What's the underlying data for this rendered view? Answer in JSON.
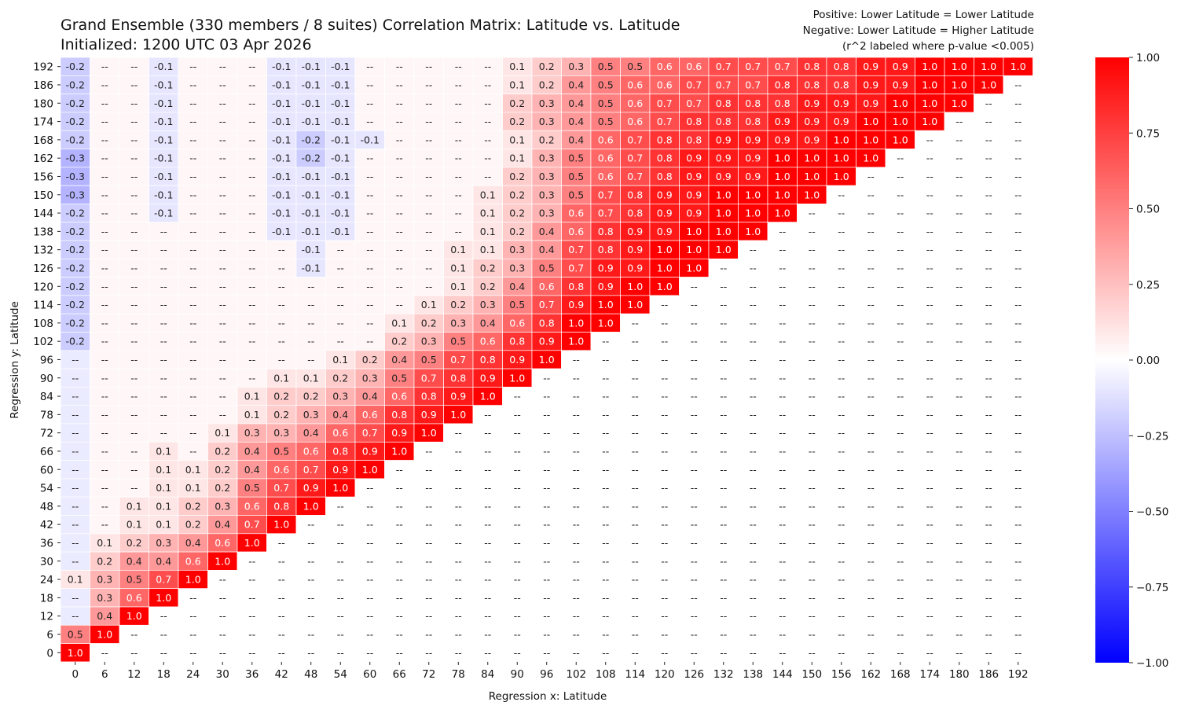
{
  "chart_data": {
    "type": "heatmap",
    "title_line1": "Grand Ensemble (330 members / 8 suites) Correlation Matrix: Latitude vs. Latitude",
    "title_line2": "Initialized: 1200 UTC 03 Apr 2026",
    "note_line1": "Positive: Lower Latitude = Lower Latitude",
    "note_line2": "Negative: Lower Latitude = Higher Latitude",
    "note_line3": "(r^2 labeled where p-value <0.005)",
    "xlabel": "Regression x: Latitude",
    "ylabel": "Regression y: Latitude",
    "x_ticks": [
      "0",
      "6",
      "12",
      "18",
      "24",
      "30",
      "36",
      "42",
      "48",
      "54",
      "60",
      "66",
      "72",
      "78",
      "84",
      "90",
      "96",
      "102",
      "108",
      "114",
      "120",
      "126",
      "132",
      "138",
      "144",
      "150",
      "156",
      "162",
      "168",
      "174",
      "180",
      "186",
      "192"
    ],
    "y_ticks_top_to_bottom": [
      "192",
      "186",
      "180",
      "174",
      "168",
      "162",
      "156",
      "150",
      "144",
      "138",
      "132",
      "126",
      "120",
      "114",
      "108",
      "102",
      "96",
      "90",
      "84",
      "78",
      "72",
      "66",
      "60",
      "54",
      "48",
      "42",
      "36",
      "30",
      "24",
      "18",
      "12",
      "6",
      "0"
    ],
    "empty_label": "--",
    "colorbar": {
      "range": [
        -1.0,
        1.0
      ],
      "tick_values": [
        1.0,
        0.75,
        0.5,
        0.25,
        0.0,
        -0.25,
        -0.5,
        -0.75,
        -1.0
      ],
      "tick_labels": [
        "1.00",
        "0.75",
        "0.50",
        "0.25",
        "0.00",
        "−0.25",
        "−0.50",
        "−0.75",
        "−1.00"
      ],
      "low_color": "#0000ff",
      "mid_color": "#ffffff",
      "high_color": "#ff0000"
    },
    "labels": [
      [
        "-0.2",
        "--",
        "--",
        "-0.1",
        "--",
        "--",
        "--",
        "-0.1",
        "-0.1",
        "-0.1",
        "--",
        "--",
        "--",
        "--",
        "--",
        "0.1",
        "0.2",
        "0.3",
        "0.5",
        "0.5",
        "0.6",
        "0.6",
        "0.7",
        "0.7",
        "0.7",
        "0.8",
        "0.8",
        "0.9",
        "0.9",
        "1.0",
        "1.0",
        "1.0",
        "1.0"
      ],
      [
        "-0.2",
        "--",
        "--",
        "-0.1",
        "--",
        "--",
        "--",
        "-0.1",
        "-0.1",
        "-0.1",
        "--",
        "--",
        "--",
        "--",
        "--",
        "0.1",
        "0.2",
        "0.4",
        "0.5",
        "0.6",
        "0.6",
        "0.7",
        "0.7",
        "0.7",
        "0.8",
        "0.8",
        "0.8",
        "0.9",
        "0.9",
        "1.0",
        "1.0",
        "1.0",
        "--"
      ],
      [
        "-0.2",
        "--",
        "--",
        "-0.1",
        "--",
        "--",
        "--",
        "-0.1",
        "-0.1",
        "-0.1",
        "--",
        "--",
        "--",
        "--",
        "--",
        "0.2",
        "0.3",
        "0.4",
        "0.5",
        "0.6",
        "0.7",
        "0.7",
        "0.8",
        "0.8",
        "0.8",
        "0.9",
        "0.9",
        "0.9",
        "1.0",
        "1.0",
        "1.0",
        "--",
        "--"
      ],
      [
        "-0.2",
        "--",
        "--",
        "-0.1",
        "--",
        "--",
        "--",
        "-0.1",
        "-0.1",
        "-0.1",
        "--",
        "--",
        "--",
        "--",
        "--",
        "0.2",
        "0.3",
        "0.4",
        "0.5",
        "0.6",
        "0.7",
        "0.8",
        "0.8",
        "0.8",
        "0.9",
        "0.9",
        "0.9",
        "1.0",
        "1.0",
        "1.0",
        "--",
        "--",
        "--"
      ],
      [
        "-0.2",
        "--",
        "--",
        "-0.1",
        "--",
        "--",
        "--",
        "-0.1",
        "-0.2",
        "-0.1",
        "-0.1",
        "--",
        "--",
        "--",
        "--",
        "0.1",
        "0.2",
        "0.4",
        "0.6",
        "0.7",
        "0.8",
        "0.8",
        "0.9",
        "0.9",
        "0.9",
        "0.9",
        "1.0",
        "1.0",
        "1.0",
        "--",
        "--",
        "--",
        "--"
      ],
      [
        "-0.3",
        "--",
        "--",
        "-0.1",
        "--",
        "--",
        "--",
        "-0.1",
        "-0.2",
        "-0.1",
        "--",
        "--",
        "--",
        "--",
        "--",
        "0.1",
        "0.3",
        "0.5",
        "0.6",
        "0.7",
        "0.8",
        "0.9",
        "0.9",
        "0.9",
        "1.0",
        "1.0",
        "1.0",
        "1.0",
        "--",
        "--",
        "--",
        "--",
        "--"
      ],
      [
        "-0.3",
        "--",
        "--",
        "-0.1",
        "--",
        "--",
        "--",
        "-0.1",
        "-0.1",
        "-0.1",
        "--",
        "--",
        "--",
        "--",
        "--",
        "0.2",
        "0.3",
        "0.5",
        "0.6",
        "0.7",
        "0.8",
        "0.9",
        "0.9",
        "0.9",
        "1.0",
        "1.0",
        "1.0",
        "--",
        "--",
        "--",
        "--",
        "--",
        "--"
      ],
      [
        "-0.3",
        "--",
        "--",
        "-0.1",
        "--",
        "--",
        "--",
        "-0.1",
        "-0.1",
        "-0.1",
        "--",
        "--",
        "--",
        "--",
        "0.1",
        "0.2",
        "0.3",
        "0.5",
        "0.7",
        "0.8",
        "0.9",
        "0.9",
        "1.0",
        "1.0",
        "1.0",
        "1.0",
        "--",
        "--",
        "--",
        "--",
        "--",
        "--",
        "--"
      ],
      [
        "-0.2",
        "--",
        "--",
        "-0.1",
        "--",
        "--",
        "--",
        "-0.1",
        "-0.1",
        "-0.1",
        "--",
        "--",
        "--",
        "--",
        "0.1",
        "0.2",
        "0.3",
        "0.6",
        "0.7",
        "0.8",
        "0.9",
        "0.9",
        "1.0",
        "1.0",
        "1.0",
        "--",
        "--",
        "--",
        "--",
        "--",
        "--",
        "--",
        "--"
      ],
      [
        "-0.2",
        "--",
        "--",
        "--",
        "--",
        "--",
        "--",
        "-0.1",
        "-0.1",
        "-0.1",
        "--",
        "--",
        "--",
        "--",
        "0.1",
        "0.2",
        "0.4",
        "0.6",
        "0.8",
        "0.9",
        "0.9",
        "1.0",
        "1.0",
        "1.0",
        "--",
        "--",
        "--",
        "--",
        "--",
        "--",
        "--",
        "--",
        "--"
      ],
      [
        "-0.2",
        "--",
        "--",
        "--",
        "--",
        "--",
        "--",
        "--",
        "-0.1",
        "--",
        "--",
        "--",
        "--",
        "0.1",
        "0.1",
        "0.3",
        "0.4",
        "0.7",
        "0.8",
        "0.9",
        "1.0",
        "1.0",
        "1.0",
        "--",
        "--",
        "--",
        "--",
        "--",
        "--",
        "--",
        "--",
        "--",
        "--"
      ],
      [
        "-0.2",
        "--",
        "--",
        "--",
        "--",
        "--",
        "--",
        "--",
        "-0.1",
        "--",
        "--",
        "--",
        "--",
        "0.1",
        "0.2",
        "0.3",
        "0.5",
        "0.7",
        "0.9",
        "0.9",
        "1.0",
        "1.0",
        "--",
        "--",
        "--",
        "--",
        "--",
        "--",
        "--",
        "--",
        "--",
        "--",
        "--"
      ],
      [
        "-0.2",
        "--",
        "--",
        "--",
        "--",
        "--",
        "--",
        "--",
        "--",
        "--",
        "--",
        "--",
        "--",
        "0.1",
        "0.2",
        "0.4",
        "0.6",
        "0.8",
        "0.9",
        "1.0",
        "1.0",
        "--",
        "--",
        "--",
        "--",
        "--",
        "--",
        "--",
        "--",
        "--",
        "--",
        "--",
        "--"
      ],
      [
        "-0.2",
        "--",
        "--",
        "--",
        "--",
        "--",
        "--",
        "--",
        "--",
        "--",
        "--",
        "--",
        "0.1",
        "0.2",
        "0.3",
        "0.5",
        "0.7",
        "0.9",
        "1.0",
        "1.0",
        "--",
        "--",
        "--",
        "--",
        "--",
        "--",
        "--",
        "--",
        "--",
        "--",
        "--",
        "--",
        "--"
      ],
      [
        "-0.2",
        "--",
        "--",
        "--",
        "--",
        "--",
        "--",
        "--",
        "--",
        "--",
        "--",
        "0.1",
        "0.2",
        "0.3",
        "0.4",
        "0.6",
        "0.8",
        "1.0",
        "1.0",
        "--",
        "--",
        "--",
        "--",
        "--",
        "--",
        "--",
        "--",
        "--",
        "--",
        "--",
        "--",
        "--",
        "--"
      ],
      [
        "-0.2",
        "--",
        "--",
        "--",
        "--",
        "--",
        "--",
        "--",
        "--",
        "--",
        "--",
        "0.2",
        "0.3",
        "0.5",
        "0.6",
        "0.8",
        "0.9",
        "1.0",
        "--",
        "--",
        "--",
        "--",
        "--",
        "--",
        "--",
        "--",
        "--",
        "--",
        "--",
        "--",
        "--",
        "--",
        "--"
      ],
      [
        "--",
        "--",
        "--",
        "--",
        "--",
        "--",
        "--",
        "--",
        "--",
        "0.1",
        "0.2",
        "0.4",
        "0.5",
        "0.7",
        "0.8",
        "0.9",
        "1.0",
        "--",
        "--",
        "--",
        "--",
        "--",
        "--",
        "--",
        "--",
        "--",
        "--",
        "--",
        "--",
        "--",
        "--",
        "--",
        "--"
      ],
      [
        "--",
        "--",
        "--",
        "--",
        "--",
        "--",
        "--",
        "0.1",
        "0.1",
        "0.2",
        "0.3",
        "0.5",
        "0.7",
        "0.8",
        "0.9",
        "1.0",
        "--",
        "--",
        "--",
        "--",
        "--",
        "--",
        "--",
        "--",
        "--",
        "--",
        "--",
        "--",
        "--",
        "--",
        "--",
        "--",
        "--"
      ],
      [
        "--",
        "--",
        "--",
        "--",
        "--",
        "--",
        "0.1",
        "0.2",
        "0.2",
        "0.3",
        "0.4",
        "0.6",
        "0.8",
        "0.9",
        "1.0",
        "--",
        "--",
        "--",
        "--",
        "--",
        "--",
        "--",
        "--",
        "--",
        "--",
        "--",
        "--",
        "--",
        "--",
        "--",
        "--",
        "--",
        "--"
      ],
      [
        "--",
        "--",
        "--",
        "--",
        "--",
        "--",
        "0.1",
        "0.2",
        "0.3",
        "0.4",
        "0.6",
        "0.8",
        "0.9",
        "1.0",
        "--",
        "--",
        "--",
        "--",
        "--",
        "--",
        "--",
        "--",
        "--",
        "--",
        "--",
        "--",
        "--",
        "--",
        "--",
        "--",
        "--",
        "--",
        "--"
      ],
      [
        "--",
        "--",
        "--",
        "--",
        "--",
        "0.1",
        "0.3",
        "0.3",
        "0.4",
        "0.6",
        "0.7",
        "0.9",
        "1.0",
        "--",
        "--",
        "--",
        "--",
        "--",
        "--",
        "--",
        "--",
        "--",
        "--",
        "--",
        "--",
        "--",
        "--",
        "--",
        "--",
        "--",
        "--",
        "--",
        "--"
      ],
      [
        "--",
        "--",
        "--",
        "0.1",
        "--",
        "0.2",
        "0.4",
        "0.5",
        "0.6",
        "0.8",
        "0.9",
        "1.0",
        "--",
        "--",
        "--",
        "--",
        "--",
        "--",
        "--",
        "--",
        "--",
        "--",
        "--",
        "--",
        "--",
        "--",
        "--",
        "--",
        "--",
        "--",
        "--",
        "--",
        "--"
      ],
      [
        "--",
        "--",
        "--",
        "0.1",
        "0.1",
        "0.2",
        "0.4",
        "0.6",
        "0.7",
        "0.9",
        "1.0",
        "--",
        "--",
        "--",
        "--",
        "--",
        "--",
        "--",
        "--",
        "--",
        "--",
        "--",
        "--",
        "--",
        "--",
        "--",
        "--",
        "--",
        "--",
        "--",
        "--",
        "--",
        "--"
      ],
      [
        "--",
        "--",
        "--",
        "0.1",
        "0.1",
        "0.2",
        "0.5",
        "0.7",
        "0.9",
        "1.0",
        "--",
        "--",
        "--",
        "--",
        "--",
        "--",
        "--",
        "--",
        "--",
        "--",
        "--",
        "--",
        "--",
        "--",
        "--",
        "--",
        "--",
        "--",
        "--",
        "--",
        "--",
        "--",
        "--"
      ],
      [
        "--",
        "--",
        "0.1",
        "0.1",
        "0.2",
        "0.3",
        "0.6",
        "0.8",
        "1.0",
        "--",
        "--",
        "--",
        "--",
        "--",
        "--",
        "--",
        "--",
        "--",
        "--",
        "--",
        "--",
        "--",
        "--",
        "--",
        "--",
        "--",
        "--",
        "--",
        "--",
        "--",
        "--",
        "--",
        "--"
      ],
      [
        "--",
        "--",
        "0.1",
        "0.1",
        "0.2",
        "0.4",
        "0.7",
        "1.0",
        "--",
        "--",
        "--",
        "--",
        "--",
        "--",
        "--",
        "--",
        "--",
        "--",
        "--",
        "--",
        "--",
        "--",
        "--",
        "--",
        "--",
        "--",
        "--",
        "--",
        "--",
        "--",
        "--",
        "--",
        "--"
      ],
      [
        "--",
        "0.1",
        "0.2",
        "0.3",
        "0.4",
        "0.6",
        "1.0",
        "--",
        "--",
        "--",
        "--",
        "--",
        "--",
        "--",
        "--",
        "--",
        "--",
        "--",
        "--",
        "--",
        "--",
        "--",
        "--",
        "--",
        "--",
        "--",
        "--",
        "--",
        "--",
        "--",
        "--",
        "--",
        "--"
      ],
      [
        "--",
        "0.2",
        "0.4",
        "0.4",
        "0.6",
        "1.0",
        "--",
        "--",
        "--",
        "--",
        "--",
        "--",
        "--",
        "--",
        "--",
        "--",
        "--",
        "--",
        "--",
        "--",
        "--",
        "--",
        "--",
        "--",
        "--",
        "--",
        "--",
        "--",
        "--",
        "--",
        "--",
        "--",
        "--"
      ],
      [
        "0.1",
        "0.3",
        "0.5",
        "0.7",
        "1.0",
        "--",
        "--",
        "--",
        "--",
        "--",
        "--",
        "--",
        "--",
        "--",
        "--",
        "--",
        "--",
        "--",
        "--",
        "--",
        "--",
        "--",
        "--",
        "--",
        "--",
        "--",
        "--",
        "--",
        "--",
        "--",
        "--",
        "--",
        "--"
      ],
      [
        "--",
        "0.3",
        "0.6",
        "1.0",
        "--",
        "--",
        "--",
        "--",
        "--",
        "--",
        "--",
        "--",
        "--",
        "--",
        "--",
        "--",
        "--",
        "--",
        "--",
        "--",
        "--",
        "--",
        "--",
        "--",
        "--",
        "--",
        "--",
        "--",
        "--",
        "--",
        "--",
        "--",
        "--"
      ],
      [
        "--",
        "0.4",
        "1.0",
        "--",
        "--",
        "--",
        "--",
        "--",
        "--",
        "--",
        "--",
        "--",
        "--",
        "--",
        "--",
        "--",
        "--",
        "--",
        "--",
        "--",
        "--",
        "--",
        "--",
        "--",
        "--",
        "--",
        "--",
        "--",
        "--",
        "--",
        "--",
        "--",
        "--"
      ],
      [
        "0.5",
        "1.0",
        "--",
        "--",
        "--",
        "--",
        "--",
        "--",
        "--",
        "--",
        "--",
        "--",
        "--",
        "--",
        "--",
        "--",
        "--",
        "--",
        "--",
        "--",
        "--",
        "--",
        "--",
        "--",
        "--",
        "--",
        "--",
        "--",
        "--",
        "--",
        "--",
        "--",
        "--"
      ],
      [
        "1.0",
        "--",
        "--",
        "--",
        "--",
        "--",
        "--",
        "--",
        "--",
        "--",
        "--",
        "--",
        "--",
        "--",
        "--",
        "--",
        "--",
        "--",
        "--",
        "--",
        "--",
        "--",
        "--",
        "--",
        "--",
        "--",
        "--",
        "--",
        "--",
        "--",
        "--",
        "--",
        "--"
      ]
    ]
  }
}
